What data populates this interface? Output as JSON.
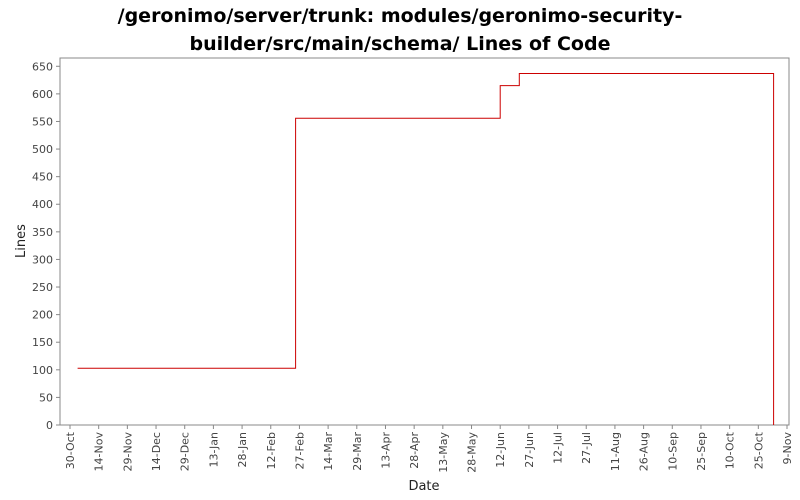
{
  "chart_data": {
    "type": "line",
    "title_lines": [
      "/geronimo/server/trunk: modules/geronimo-security-",
      "builder/src/main/schema/ Lines of Code"
    ],
    "xlabel": "Date",
    "ylabel": "Lines",
    "ylim": [
      0,
      665
    ],
    "y_ticks": [
      0,
      50,
      100,
      150,
      200,
      250,
      300,
      350,
      400,
      450,
      500,
      550,
      600,
      650
    ],
    "x_range": [
      "2006-10-30",
      "2007-11-09"
    ],
    "x_ticks": [
      {
        "date": "2006-10-30",
        "label": "30-Oct"
      },
      {
        "date": "2006-11-14",
        "label": "14-Nov"
      },
      {
        "date": "2006-11-29",
        "label": "29-Nov"
      },
      {
        "date": "2006-12-14",
        "label": "14-Dec"
      },
      {
        "date": "2006-12-29",
        "label": "29-Dec"
      },
      {
        "date": "2007-01-13",
        "label": "13-Jan"
      },
      {
        "date": "2007-01-28",
        "label": "28-Jan"
      },
      {
        "date": "2007-02-12",
        "label": "12-Feb"
      },
      {
        "date": "2007-02-27",
        "label": "27-Feb"
      },
      {
        "date": "2007-03-14",
        "label": "14-Mar"
      },
      {
        "date": "2007-03-29",
        "label": "29-Mar"
      },
      {
        "date": "2007-04-13",
        "label": "13-Apr"
      },
      {
        "date": "2007-04-28",
        "label": "28-Apr"
      },
      {
        "date": "2007-05-13",
        "label": "13-May"
      },
      {
        "date": "2007-05-28",
        "label": "28-May"
      },
      {
        "date": "2007-06-12",
        "label": "12-Jun"
      },
      {
        "date": "2007-06-27",
        "label": "27-Jun"
      },
      {
        "date": "2007-07-12",
        "label": "12-Jul"
      },
      {
        "date": "2007-07-27",
        "label": "27-Jul"
      },
      {
        "date": "2007-08-11",
        "label": "11-Aug"
      },
      {
        "date": "2007-08-26",
        "label": "26-Aug"
      },
      {
        "date": "2007-09-10",
        "label": "10-Sep"
      },
      {
        "date": "2007-09-25",
        "label": "25-Sep"
      },
      {
        "date": "2007-10-10",
        "label": "10-Oct"
      },
      {
        "date": "2007-10-25",
        "label": "25-Oct"
      },
      {
        "date": "2007-11-09",
        "label": "9-Nov"
      }
    ],
    "series": [
      {
        "color": "#cc0000",
        "step": true,
        "points": [
          {
            "x": "2006-11-03",
            "y": 103
          },
          {
            "x": "2007-02-25",
            "y": 556
          },
          {
            "x": "2007-06-12",
            "y": 615
          },
          {
            "x": "2007-06-22",
            "y": 637
          },
          {
            "x": "2007-11-02",
            "y": 0
          }
        ]
      }
    ],
    "grid": false,
    "legend": "none"
  }
}
